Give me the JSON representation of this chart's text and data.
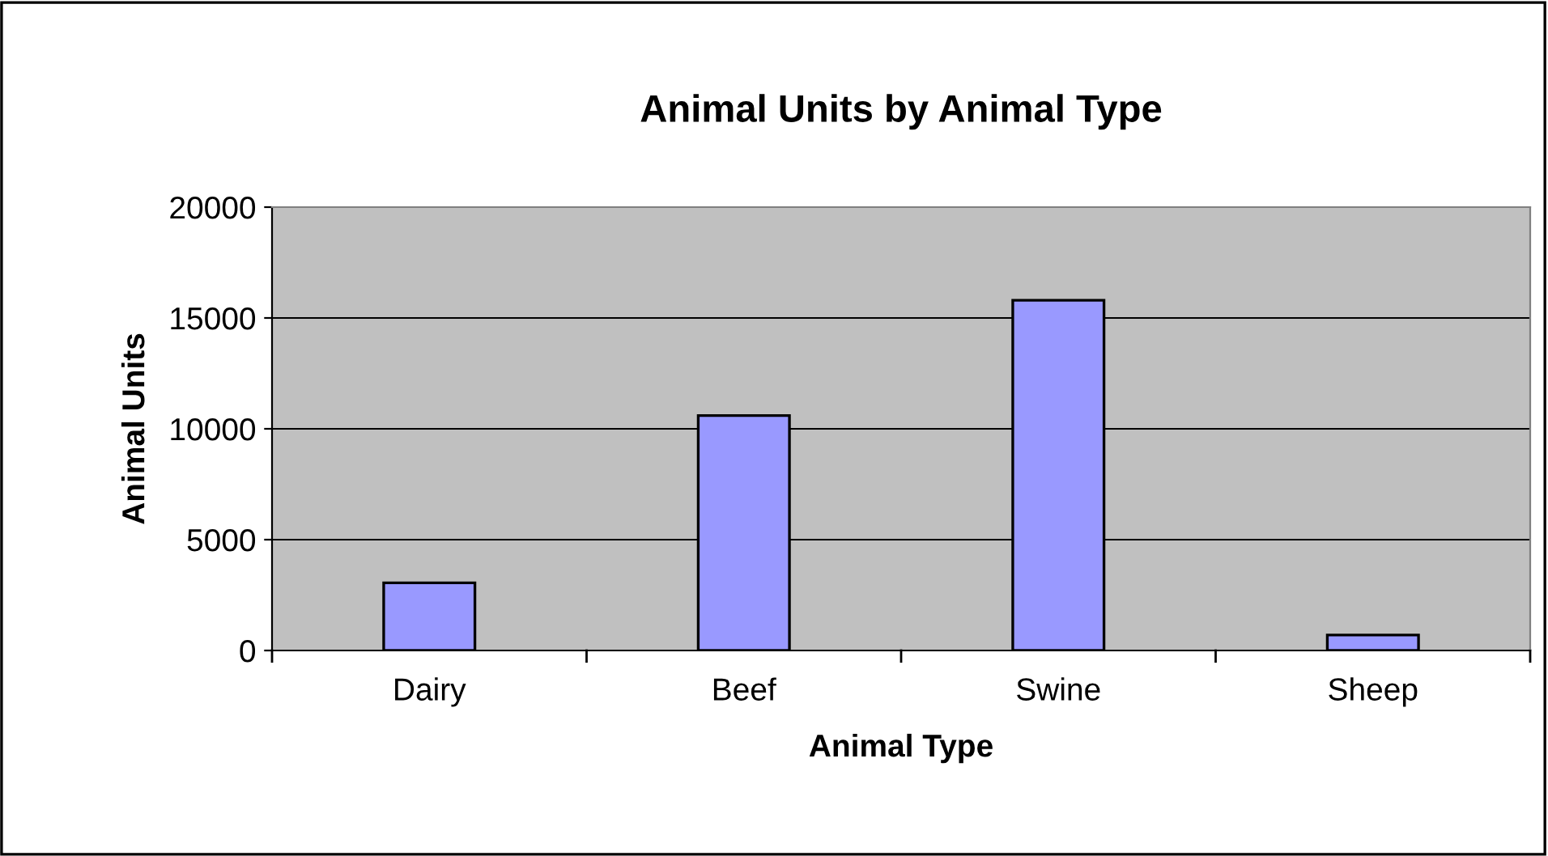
{
  "chart_data": {
    "type": "bar",
    "title": "Animal Units by Animal Type",
    "xlabel": "Animal Type",
    "ylabel": "Animal Units",
    "categories": [
      "Dairy",
      "Beef",
      "Swine",
      "Sheep"
    ],
    "values": [
      3050,
      10600,
      15800,
      700
    ],
    "color": "#9999ff",
    "ylim": [
      0,
      20000
    ],
    "yticks": [
      0,
      5000,
      10000,
      15000,
      20000
    ],
    "grid": "y"
  }
}
